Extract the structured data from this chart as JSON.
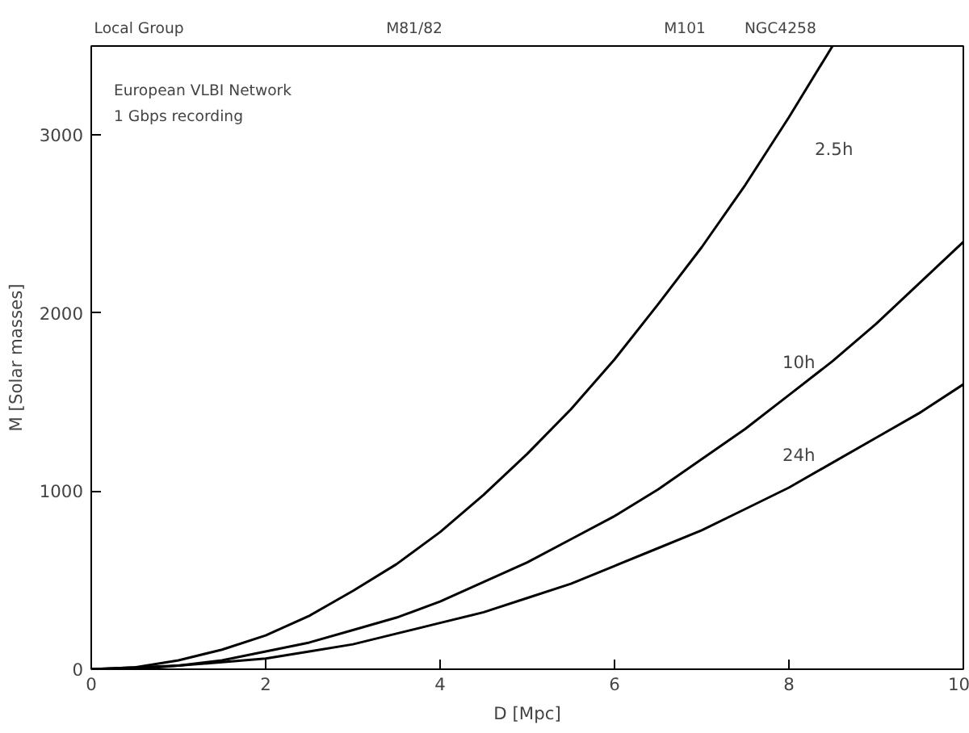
{
  "chart_data": {
    "type": "line",
    "xlabel": "D [Mpc]",
    "ylabel": "M [Solar masses]",
    "xlim": [
      0,
      10
    ],
    "ylim": [
      0,
      3500
    ],
    "xticks": [
      0,
      2,
      4,
      6,
      8,
      10
    ],
    "yticks": [
      0,
      1000,
      2000,
      3000
    ],
    "grid": false,
    "legend": false,
    "marker": "none",
    "line_style": "solid",
    "series": [
      {
        "name": "2.5h",
        "color": "#000000",
        "x": [
          0,
          0.5,
          1,
          1.5,
          2,
          2.5,
          3,
          3.5,
          4,
          4.5,
          5,
          5.5,
          6,
          6.5,
          7,
          7.5,
          8,
          8.5
        ],
        "values": [
          0,
          10,
          50,
          110,
          190,
          300,
          440,
          590,
          770,
          980,
          1210,
          1460,
          1740,
          2050,
          2370,
          2720,
          3100,
          3500
        ]
      },
      {
        "name": "10h",
        "color": "#000000",
        "x": [
          0,
          0.5,
          1,
          1.5,
          2,
          2.5,
          3,
          3.5,
          4,
          4.5,
          5,
          5.5,
          6,
          6.5,
          7,
          7.5,
          8,
          8.5,
          9,
          9.5,
          10
        ],
        "values": [
          0,
          10,
          20,
          50,
          100,
          150,
          220,
          290,
          380,
          490,
          600,
          730,
          860,
          1010,
          1180,
          1350,
          1540,
          1730,
          1940,
          2170,
          2400
        ]
      },
      {
        "name": "24h",
        "color": "#000000",
        "x": [
          0,
          0.5,
          1,
          1.5,
          2,
          2.5,
          3,
          3.5,
          4,
          4.5,
          5,
          5.5,
          6,
          6.5,
          7,
          7.5,
          8,
          8.5,
          9,
          9.5,
          10
        ],
        "values": [
          0,
          0,
          20,
          40,
          60,
          100,
          140,
          200,
          260,
          320,
          400,
          480,
          580,
          680,
          780,
          900,
          1020,
          1160,
          1300,
          1440,
          1600
        ]
      }
    ],
    "annotations": [
      "Local Group",
      "M81/82",
      "M101",
      "NGC4258",
      "European VLBI Network",
      "1 Gbps recording"
    ]
  }
}
